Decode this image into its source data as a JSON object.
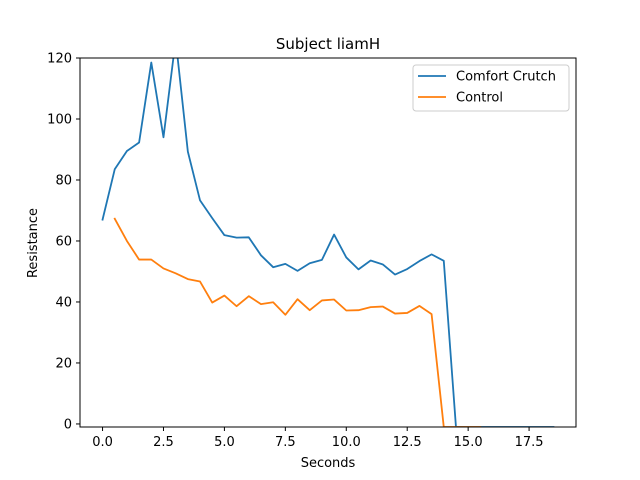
{
  "chart_data": {
    "type": "line",
    "title": "Subject liamH",
    "xlabel": "Seconds",
    "ylabel": "Resistance",
    "xlim": [
      -0.925,
      19.425
    ],
    "ylim": [
      -1,
      120
    ],
    "xticks": [
      0,
      2.5,
      5,
      7.5,
      10,
      12.5,
      15,
      17.5
    ],
    "xtick_labels": [
      "0.0",
      "2.5",
      "5.0",
      "7.5",
      "10.0",
      "12.5",
      "15.0",
      "17.5"
    ],
    "yticks": [
      0,
      20,
      40,
      60,
      80,
      100,
      120
    ],
    "ytick_labels": [
      "0",
      "20",
      "40",
      "60",
      "80",
      "100",
      "120"
    ],
    "grid": false,
    "legend_position": "top-right",
    "series": [
      {
        "name": "Comfort Crutch",
        "color": "#1f77b4",
        "x": [
          0,
          0.5,
          1,
          1.5,
          2,
          2.5,
          3,
          3.5,
          4,
          4.5,
          5,
          5.5,
          6,
          6.5,
          7,
          7.5,
          8,
          8.5,
          9,
          9.5,
          10,
          10.5,
          11,
          11.5,
          12,
          12.5,
          13,
          13.5,
          14,
          14.5,
          15,
          15.5,
          16,
          16.5,
          17,
          17.5,
          18,
          18.5
        ],
        "y": [
          67,
          83.5,
          89.5,
          92.3,
          118.5,
          94,
          126,
          89.3,
          73.3,
          67.5,
          61.9,
          61.1,
          61.2,
          55.3,
          51.4,
          52.5,
          50.2,
          52.7,
          53.8,
          62.1,
          54.6,
          50.7,
          53.6,
          52.3,
          49,
          50.8,
          53.4,
          55.6,
          53.5,
          -1,
          -1,
          -1,
          -1,
          -1,
          -1,
          -1,
          -1,
          -1
        ]
      },
      {
        "name": "Control",
        "color": "#ff7f0e",
        "x": [
          0.5,
          1,
          1.5,
          2,
          2.5,
          3,
          3.5,
          4,
          4.5,
          5,
          5.5,
          6,
          6.5,
          7,
          7.5,
          8,
          8.5,
          9,
          9.5,
          10,
          10.5,
          11,
          11.5,
          12,
          12.5,
          13,
          13.5,
          14,
          14.5,
          15,
          15.5
        ],
        "y": [
          67.3,
          60,
          53.9,
          53.9,
          51,
          49.4,
          47.5,
          46.7,
          39.8,
          42.1,
          38.6,
          41.9,
          39.3,
          39.9,
          35.8,
          40.9,
          37.3,
          40.5,
          40.8,
          37.2,
          37.3,
          38.3,
          38.5,
          36.2,
          36.4,
          38.7,
          36,
          -1,
          -1,
          -1,
          -1
        ]
      }
    ]
  }
}
